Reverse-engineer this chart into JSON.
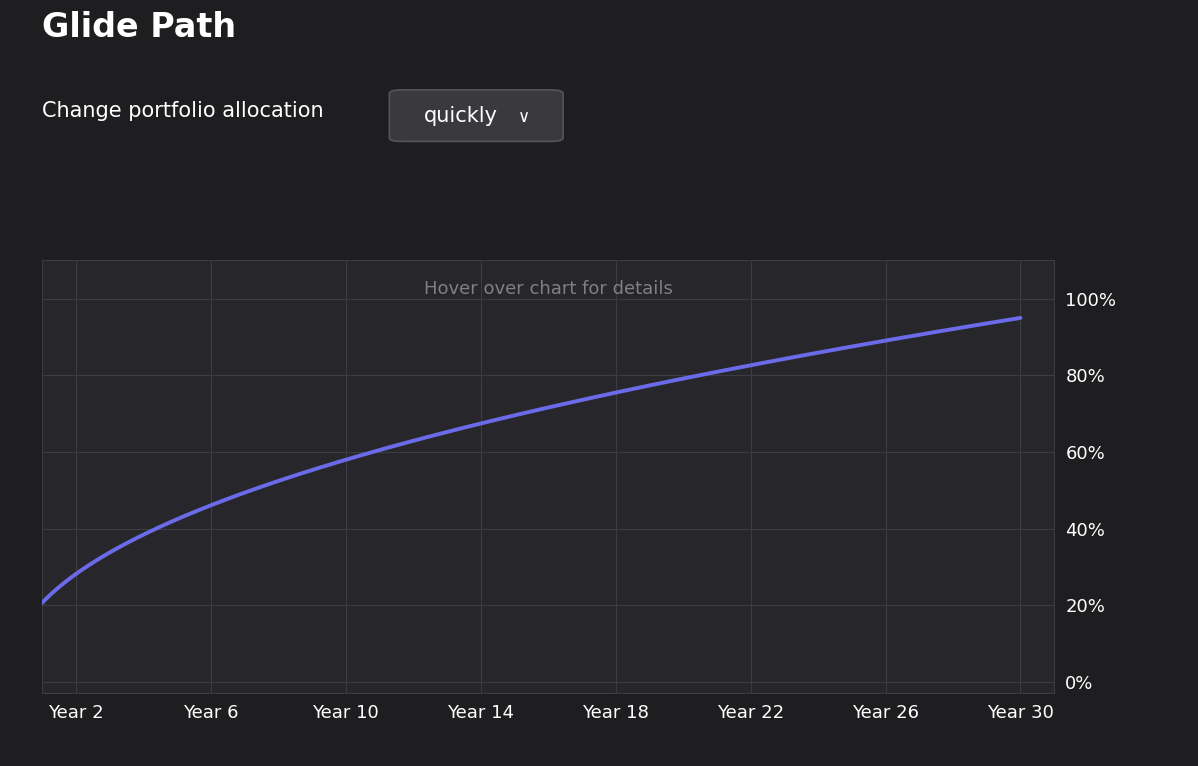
{
  "title": "Glide Path",
  "subtitle_text": "Change portfolio allocation",
  "hover_text": "Hover over chart for details",
  "bg_color": "#1e1e20",
  "chart_bg_color": "#27272b",
  "grid_color": "#3c3c42",
  "line_color": "#6b6bea",
  "text_color": "#ffffff",
  "gray_text_color": "#808080",
  "dropdown_bg": "#3a3a3e",
  "dropdown_text": "quickly",
  "ytick_labels": [
    "0%",
    "20%",
    "40%",
    "60%",
    "80%",
    "100%"
  ],
  "ytick_values": [
    0,
    20,
    40,
    60,
    80,
    100
  ],
  "xtick_labels": [
    "Year 2",
    "Year 6",
    "Year 10",
    "Year 14",
    "Year 18",
    "Year 22",
    "Year 26",
    "Year 30"
  ],
  "xtick_values": [
    2,
    6,
    10,
    14,
    18,
    22,
    26,
    30
  ],
  "xlim": [
    1,
    31
  ],
  "ylim": [
    -3,
    110
  ],
  "curve_start_x": 1,
  "curve_end_x": 30,
  "line_width": 2.8,
  "title_fontsize": 24,
  "subtitle_fontsize": 15,
  "tick_fontsize": 13,
  "hover_fontsize": 13
}
